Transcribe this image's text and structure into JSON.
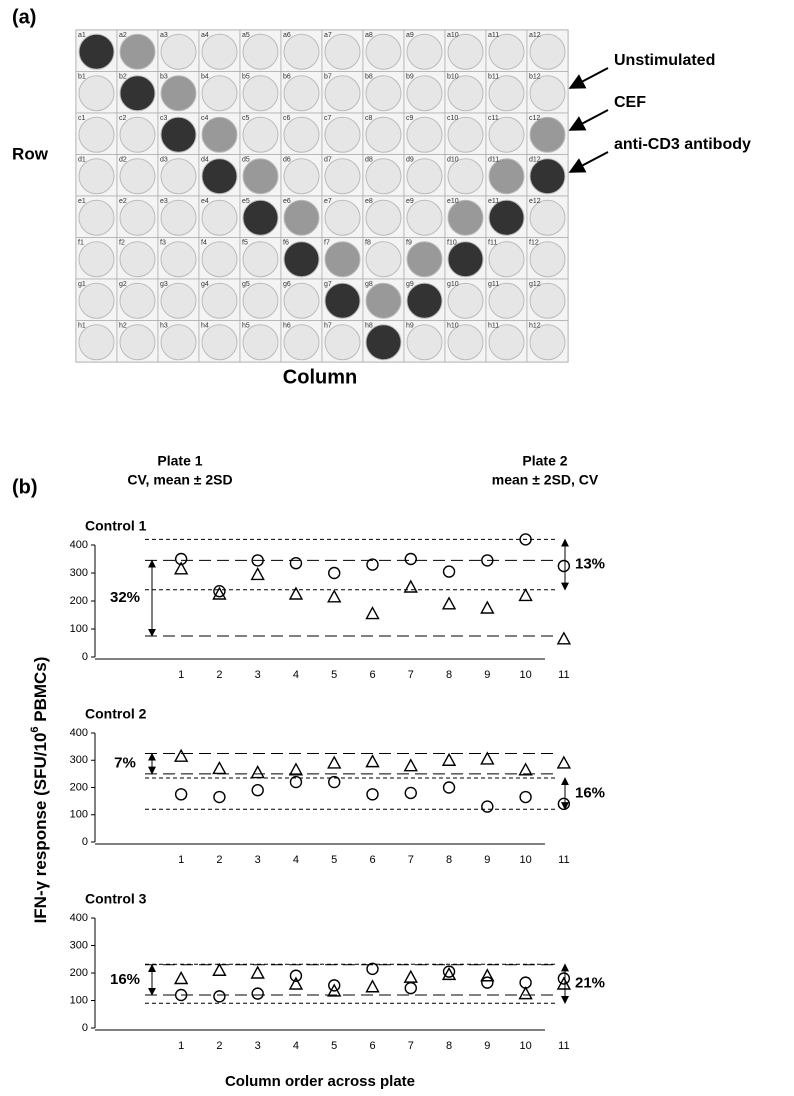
{
  "labels": {
    "a": "(a)",
    "b": "(b)"
  },
  "plate": {
    "row_label": "Row",
    "column_label": "Column",
    "annotations": [
      "Unstimulated",
      "CEF",
      "anti-CD3 antibody"
    ],
    "rows": [
      {
        "wells": [
          "a1",
          "a2",
          "a3",
          "a4",
          "a5",
          "a6",
          "a7",
          "a8",
          "a9",
          "a10",
          "a11",
          "a12"
        ],
        "colors": [
          "#333",
          "#999",
          "#e6e6e6",
          "#e6e6e6",
          "#e6e6e6",
          "#e6e6e6",
          "#e6e6e6",
          "#e6e6e6",
          "#e6e6e6",
          "#e6e6e6",
          "#e6e6e6",
          "#e6e6e6"
        ]
      },
      {
        "wells": [
          "b1",
          "b2",
          "b3",
          "b4",
          "b5",
          "b6",
          "b7",
          "b8",
          "b9",
          "b10",
          "b11",
          "b12"
        ],
        "colors": [
          "#e6e6e6",
          "#333",
          "#999",
          "#e6e6e6",
          "#e6e6e6",
          "#e6e6e6",
          "#e6e6e6",
          "#e6e6e6",
          "#e6e6e6",
          "#e6e6e6",
          "#e6e6e6",
          "#e6e6e6"
        ]
      },
      {
        "wells": [
          "c1",
          "c2",
          "c3",
          "c4",
          "c5",
          "c6",
          "c7",
          "c8",
          "c9",
          "c10",
          "c11",
          "c12"
        ],
        "colors": [
          "#e6e6e6",
          "#e6e6e6",
          "#333",
          "#999",
          "#e6e6e6",
          "#e6e6e6",
          "#e6e6e6",
          "#e6e6e6",
          "#e6e6e6",
          "#e6e6e6",
          "#e6e6e6",
          "#999"
        ]
      },
      {
        "wells": [
          "d1",
          "d2",
          "d3",
          "d4",
          "d5",
          "d6",
          "d7",
          "d8",
          "d9",
          "d10",
          "d11",
          "d12"
        ],
        "colors": [
          "#e6e6e6",
          "#e6e6e6",
          "#e6e6e6",
          "#333",
          "#999",
          "#e6e6e6",
          "#e6e6e6",
          "#e6e6e6",
          "#e6e6e6",
          "#e6e6e6",
          "#999",
          "#333"
        ]
      },
      {
        "wells": [
          "e1",
          "e2",
          "e3",
          "e4",
          "e5",
          "e6",
          "e7",
          "e8",
          "e9",
          "e10",
          "e11",
          "e12"
        ],
        "colors": [
          "#e6e6e6",
          "#e6e6e6",
          "#e6e6e6",
          "#e6e6e6",
          "#333",
          "#999",
          "#e6e6e6",
          "#e6e6e6",
          "#e6e6e6",
          "#999",
          "#333",
          "#e6e6e6"
        ]
      },
      {
        "wells": [
          "f1",
          "f2",
          "f3",
          "f4",
          "f5",
          "f6",
          "f7",
          "f8",
          "f9",
          "f10",
          "f11",
          "f12"
        ],
        "colors": [
          "#e6e6e6",
          "#e6e6e6",
          "#e6e6e6",
          "#e6e6e6",
          "#e6e6e6",
          "#333",
          "#999",
          "#e6e6e6",
          "#999",
          "#333",
          "#e6e6e6",
          "#e6e6e6"
        ]
      },
      {
        "wells": [
          "g1",
          "g2",
          "g3",
          "g4",
          "g5",
          "g6",
          "g7",
          "g8",
          "g9",
          "g10",
          "g11",
          "g12"
        ],
        "colors": [
          "#e6e6e6",
          "#e6e6e6",
          "#e6e6e6",
          "#e6e6e6",
          "#e6e6e6",
          "#e6e6e6",
          "#333",
          "#999",
          "#333",
          "#e6e6e6",
          "#e6e6e6",
          "#e6e6e6"
        ]
      },
      {
        "wells": [
          "h1",
          "h2",
          "h3",
          "h4",
          "h5",
          "h6",
          "h7",
          "h8",
          "h9",
          "h10",
          "h11",
          "h12"
        ],
        "colors": [
          "#e6e6e6",
          "#e6e6e6",
          "#e6e6e6",
          "#e6e6e6",
          "#e6e6e6",
          "#e6e6e6",
          "#e6e6e6",
          "#333",
          "#e6e6e6",
          "#e6e6e6",
          "#e6e6e6",
          "#e6e6e6"
        ]
      }
    ]
  },
  "header": {
    "plate1": [
      "Plate 1",
      "CV, mean ± 2SD"
    ],
    "plate2": [
      "Plate 2",
      "mean ± 2SD, CV"
    ]
  },
  "y_label": [
    "IFN-γ response (SFU/10",
    "6",
    " PBMCs)"
  ],
  "x_label": "Column order across plate",
  "chart_data": [
    {
      "type": "scatter",
      "title": "Control 1",
      "x": [
        1,
        2,
        3,
        4,
        5,
        6,
        7,
        8,
        9,
        10,
        11
      ],
      "xlim": [
        0.5,
        11.5
      ],
      "xticks": [
        1,
        2,
        3,
        4,
        5,
        6,
        7,
        8,
        9,
        10,
        11
      ],
      "ylim": [
        0,
        400
      ],
      "yticks": [
        0,
        100,
        200,
        300,
        400
      ],
      "series": [
        {
          "marker": "triangle",
          "color": "#000000",
          "values": [
            315,
            225,
            295,
            225,
            215,
            155,
            250,
            190,
            175,
            220,
            65
          ]
        },
        {
          "marker": "circle",
          "color": "#000000",
          "values": [
            350,
            235,
            345,
            335,
            300,
            330,
            350,
            305,
            345,
            420,
            325
          ]
        }
      ],
      "limits": [
        {
          "values": [
            345,
            75
          ],
          "dash": "long",
          "cv": "32%",
          "side": "left"
        },
        {
          "values": [
            420,
            240
          ],
          "dash": "short",
          "cv": "13%",
          "side": "right"
        }
      ]
    },
    {
      "type": "scatter",
      "title": "Control 2",
      "x": [
        1,
        2,
        3,
        4,
        5,
        6,
        7,
        8,
        9,
        10,
        11
      ],
      "xlim": [
        0.5,
        11.5
      ],
      "xticks": [
        1,
        2,
        3,
        4,
        5,
        6,
        7,
        8,
        9,
        10,
        11
      ],
      "ylim": [
        0,
        400
      ],
      "yticks": [
        0,
        100,
        200,
        300,
        400
      ],
      "series": [
        {
          "marker": "triangle",
          "color": "#000000",
          "values": [
            315,
            270,
            255,
            265,
            290,
            295,
            280,
            300,
            305,
            265,
            290
          ]
        },
        {
          "marker": "circle",
          "color": "#000000",
          "values": [
            175,
            165,
            190,
            220,
            220,
            175,
            180,
            200,
            130,
            165,
            140
          ]
        }
      ],
      "limits": [
        {
          "values": [
            325,
            250
          ],
          "dash": "long",
          "cv": "7%",
          "side": "left"
        },
        {
          "values": [
            235,
            120
          ],
          "dash": "short",
          "cv": "16%",
          "side": "right"
        }
      ]
    },
    {
      "type": "scatter",
      "title": "Control 3",
      "x": [
        1,
        2,
        3,
        4,
        5,
        6,
        7,
        8,
        9,
        10,
        11
      ],
      "xlim": [
        0.5,
        11.5
      ],
      "xticks": [
        1,
        2,
        3,
        4,
        5,
        6,
        7,
        8,
        9,
        10,
        11
      ],
      "ylim": [
        0,
        400
      ],
      "yticks": [
        0,
        100,
        200,
        300,
        400
      ],
      "series": [
        {
          "marker": "triangle",
          "color": "#000000",
          "values": [
            180,
            210,
            200,
            160,
            135,
            150,
            185,
            195,
            190,
            125,
            160
          ]
        },
        {
          "marker": "circle",
          "color": "#000000",
          "values": [
            120,
            115,
            125,
            190,
            155,
            215,
            145,
            205,
            165,
            165,
            180
          ]
        }
      ],
      "limits": [
        {
          "values": [
            230,
            120
          ],
          "dash": "long",
          "cv": "16%",
          "side": "left"
        },
        {
          "values": [
            232,
            90
          ],
          "dash": "short",
          "cv": "21%",
          "side": "right"
        }
      ]
    }
  ]
}
